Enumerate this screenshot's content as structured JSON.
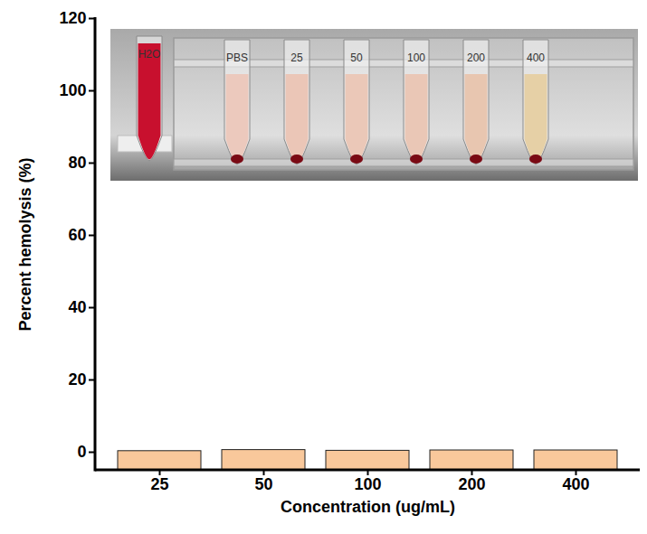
{
  "chart_data": {
    "type": "bar",
    "x_label": "Concentration (ug/mL)",
    "y_label": "Percent hemolysis (%)",
    "categories": [
      "25",
      "50",
      "100",
      "200",
      "400"
    ],
    "values": [
      0.3,
      0.6,
      0.4,
      0.5,
      0.5
    ],
    "color": "#f9c89b",
    "ylim": [
      -5,
      120
    ],
    "yticks": [
      0,
      20,
      40,
      60,
      80,
      100,
      120
    ],
    "grid": false,
    "inset_tubes": [
      {
        "label": "H2O",
        "color": "#c8102e"
      },
      {
        "label": "PBS",
        "color": "#ecc9bd"
      },
      {
        "label": "25",
        "color": "#ebc6b7"
      },
      {
        "label": "50",
        "color": "#ebc8b8"
      },
      {
        "label": "100",
        "color": "#eac7b6"
      },
      {
        "label": "200",
        "color": "#e8c6b0"
      },
      {
        "label": "400",
        "color": "#e6d0a6"
      }
    ]
  }
}
